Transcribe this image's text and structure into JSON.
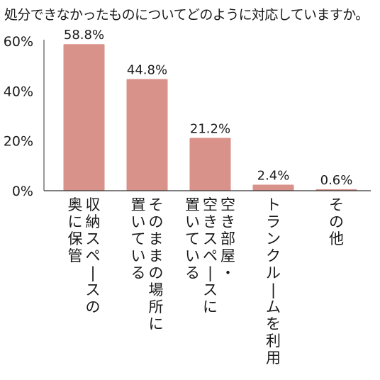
{
  "chart_data": {
    "type": "bar",
    "title": "処分できなかったものについてどのように対応していますか。",
    "categories": [
      [
        "収納スペースの",
        "奥に保管"
      ],
      [
        "そのままの場所に",
        "置いている"
      ],
      [
        "空き部屋・",
        "空きスペースに",
        "置いている"
      ],
      [
        "トランクルームを利用"
      ],
      [
        "その他"
      ]
    ],
    "values": [
      58.8,
      44.8,
      21.2,
      2.4,
      0.6
    ],
    "value_labels": [
      "58.8%",
      "44.8%",
      "21.2%",
      "2.4%",
      "0.6%"
    ],
    "ylim": [
      0,
      60
    ],
    "y_ticks": [
      0,
      20,
      40,
      60
    ],
    "y_tick_labels": [
      "0%",
      "20%",
      "40%",
      "60%"
    ],
    "xlabel": "",
    "ylabel": "",
    "grid": false,
    "bar_color": "#d9928a",
    "axis_color": "#333333"
  }
}
